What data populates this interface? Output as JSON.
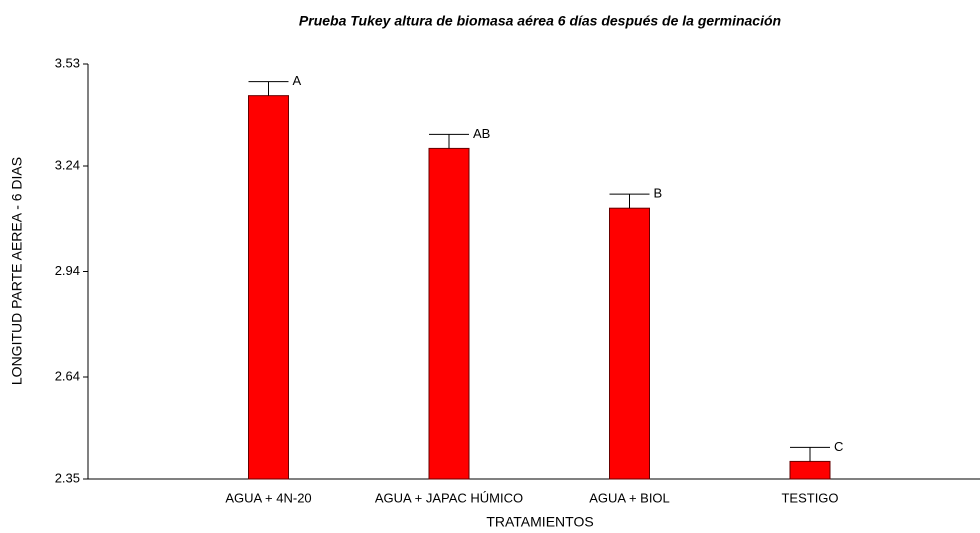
{
  "chart_data": {
    "type": "bar",
    "title": "Prueba Tukey altura de biomasa aérea 6 días después de la germinación",
    "x_label": "TRATAMIENTOS",
    "y_label": "LONGITUD PARTE AEREA - 6 DIAS",
    "categories": [
      "AGUA + 4N-20",
      "AGUA + JAPAC HÚMICO",
      "AGUA + BIOL",
      "TESTIGO"
    ],
    "values": [
      3.44,
      3.29,
      3.12,
      2.4
    ],
    "errors": [
      0.04,
      0.04,
      0.04,
      0.04
    ],
    "letters": [
      "A",
      "AB",
      "B",
      "C"
    ],
    "color": "#ff0000",
    "ylim": [
      2.35,
      3.53
    ],
    "yticks": [
      2.35,
      2.64,
      2.94,
      3.24,
      3.53
    ],
    "grid": false
  }
}
